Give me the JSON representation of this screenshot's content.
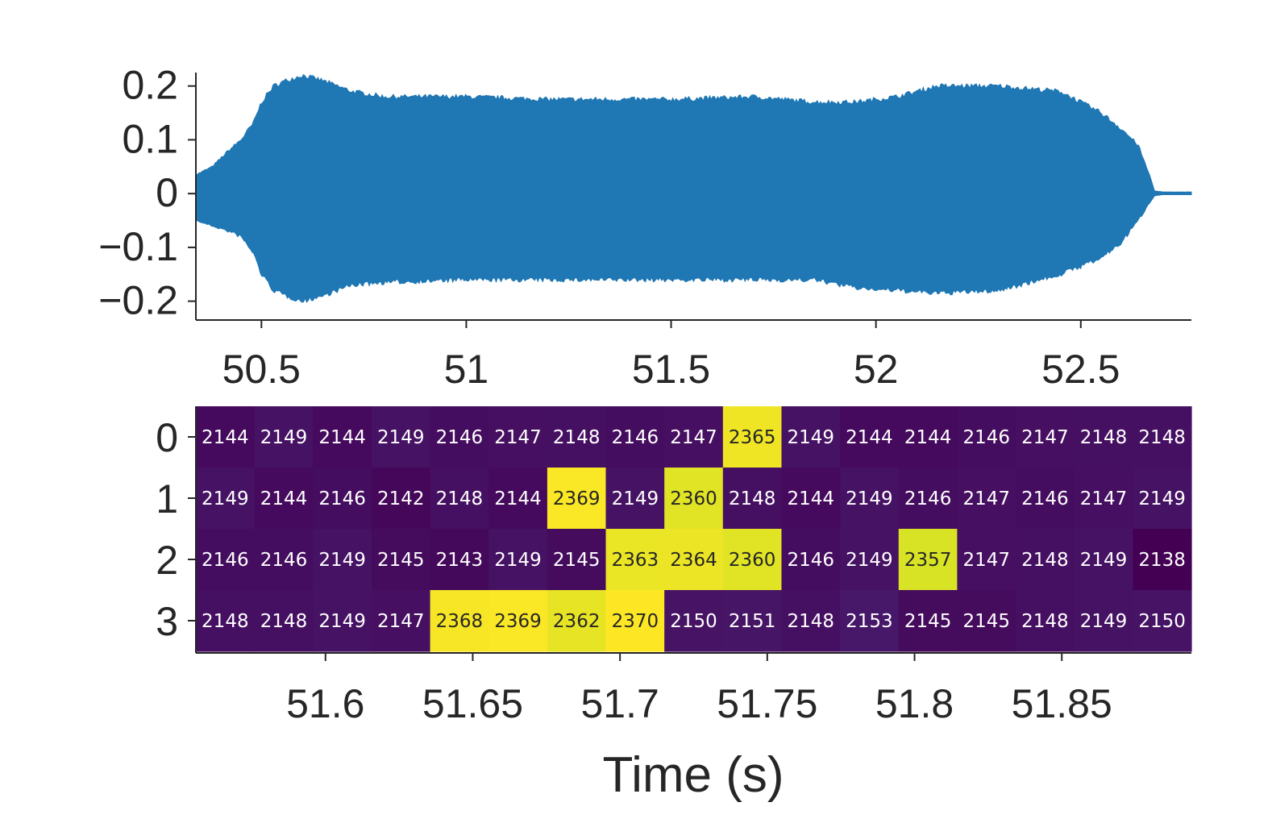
{
  "chart_data": [
    {
      "type": "area",
      "title": "",
      "xlabel": "",
      "ylabel": "",
      "xlim": [
        50.34,
        52.77
      ],
      "ylim": [
        -0.235,
        0.225
      ],
      "x_ticks": [
        50.5,
        51,
        51.5,
        52,
        52.5
      ],
      "x_tick_labels": [
        "50.5",
        "51",
        "51.5",
        "52",
        "52.5"
      ],
      "y_ticks": [
        0.2,
        0.1,
        0,
        -0.1,
        -0.2
      ],
      "y_tick_labels": [
        "0.2",
        "0.1",
        "0",
        "−0.1",
        "−0.2"
      ],
      "series_color": "#1f77b4",
      "envelope": {
        "time": [
          50.34,
          50.38,
          50.42,
          50.45,
          50.48,
          50.5,
          50.53,
          50.56,
          50.6,
          50.65,
          50.72,
          50.8,
          51.0,
          51.2,
          51.5,
          51.7,
          51.85,
          51.95,
          52.05,
          52.15,
          52.3,
          52.45,
          52.55,
          52.6,
          52.64,
          52.67,
          52.68,
          52.7,
          52.77
        ],
        "upper": [
          0.035,
          0.05,
          0.08,
          0.1,
          0.13,
          0.17,
          0.2,
          0.21,
          0.22,
          0.21,
          0.19,
          0.18,
          0.18,
          0.175,
          0.175,
          0.18,
          0.17,
          0.17,
          0.18,
          0.2,
          0.2,
          0.19,
          0.15,
          0.12,
          0.09,
          0.03,
          0.005,
          0.003,
          0.003
        ],
        "lower": [
          -0.05,
          -0.06,
          -0.07,
          -0.08,
          -0.11,
          -0.15,
          -0.18,
          -0.19,
          -0.2,
          -0.19,
          -0.17,
          -0.165,
          -0.16,
          -0.16,
          -0.16,
          -0.16,
          -0.16,
          -0.175,
          -0.18,
          -0.185,
          -0.18,
          -0.15,
          -0.12,
          -0.09,
          -0.05,
          -0.015,
          -0.004,
          -0.002,
          -0.002
        ]
      }
    },
    {
      "type": "heatmap",
      "title": "",
      "xlabel": "Time (s)",
      "ylabel": "",
      "colormap": "viridis",
      "value_range": [
        2138,
        2370
      ],
      "xlim": [
        51.556,
        51.894
      ],
      "x_ticks": [
        51.6,
        51.65,
        51.7,
        51.75,
        51.8,
        51.85
      ],
      "x_tick_labels": [
        "51.6",
        "51.65",
        "51.7",
        "51.75",
        "51.8",
        "51.85"
      ],
      "row_labels": [
        "0",
        "1",
        "2",
        "3"
      ],
      "values": [
        [
          2144,
          2149,
          2144,
          2149,
          2146,
          2147,
          2148,
          2146,
          2147,
          2365,
          2149,
          2144,
          2144,
          2146,
          2147,
          2148,
          2148
        ],
        [
          2149,
          2144,
          2146,
          2142,
          2148,
          2144,
          2369,
          2149,
          2360,
          2148,
          2144,
          2149,
          2146,
          2147,
          2146,
          2147,
          2149
        ],
        [
          2146,
          2146,
          2149,
          2145,
          2143,
          2149,
          2145,
          2363,
          2364,
          2360,
          2146,
          2149,
          2357,
          2147,
          2148,
          2149,
          2138
        ],
        [
          2148,
          2148,
          2149,
          2147,
          2368,
          2369,
          2362,
          2370,
          2150,
          2151,
          2148,
          2153,
          2145,
          2145,
          2148,
          2149,
          2150
        ]
      ]
    }
  ]
}
